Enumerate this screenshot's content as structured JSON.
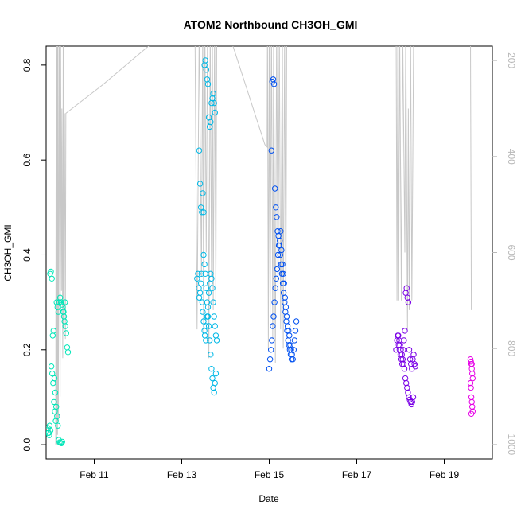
{
  "chart_data": {
    "type": "scatter",
    "title": "ATOM2 Northbound CH3OH_GMI",
    "xlabel": "Date",
    "ylabel": "CH3OH_GMI",
    "xlim": [
      0,
      10.2
    ],
    "ylim": [
      -0.03,
      0.84
    ],
    "x_ticks": [
      {
        "value": 1.1,
        "label": "Feb 11"
      },
      {
        "value": 3.1,
        "label": "Feb 13"
      },
      {
        "value": 5.1,
        "label": "Feb 15"
      },
      {
        "value": 7.1,
        "label": "Feb 17"
      },
      {
        "value": 9.1,
        "label": "Feb 19"
      }
    ],
    "y_ticks": [
      0.0,
      0.2,
      0.4,
      0.6,
      0.8
    ],
    "y_tick_labels": [
      "0.0",
      "0.2",
      "0.4",
      "0.6",
      "0.8"
    ],
    "right_axis": {
      "ylim": [
        1030,
        170
      ],
      "ticks": [
        200,
        400,
        600,
        800,
        1000
      ],
      "tick_labels": [
        "200",
        "400",
        "600",
        "800",
        "1000"
      ],
      "color": "#b8b8b8"
    },
    "pressure_trace": {
      "color": "#c8c8c8",
      "points": [
        [
          0.22,
          1000
        ],
        [
          0.23,
          120
        ],
        [
          0.24,
          1000
        ],
        [
          0.25,
          130
        ],
        [
          0.26,
          980
        ],
        [
          0.27,
          110
        ],
        [
          0.28,
          950
        ],
        [
          0.3,
          120
        ],
        [
          0.32,
          900
        ],
        [
          0.33,
          150
        ],
        [
          0.35,
          680
        ],
        [
          0.36,
          300
        ],
        [
          0.38,
          820
        ],
        [
          0.39,
          120
        ],
        [
          0.4,
          760
        ],
        [
          0.42,
          310
        ],
        [
          0.44,
          780
        ],
        [
          0.45,
          310
        ],
        [
          1.3,
          250
        ],
        [
          2.6,
          150
        ],
        [
          3.4,
          100
        ],
        [
          3.45,
          760
        ],
        [
          3.5,
          120
        ],
        [
          3.55,
          650
        ],
        [
          3.58,
          130
        ],
        [
          3.6,
          770
        ],
        [
          3.63,
          120
        ],
        [
          3.66,
          600
        ],
        [
          3.69,
          110
        ],
        [
          3.72,
          820
        ],
        [
          3.75,
          130
        ],
        [
          3.78,
          650
        ],
        [
          3.8,
          120
        ],
        [
          3.82,
          720
        ],
        [
          3.85,
          130
        ],
        [
          3.88,
          700
        ],
        [
          3.9,
          150
        ],
        [
          3.94,
          120
        ],
        [
          4.2,
          150
        ],
        [
          5.0,
          375
        ],
        [
          5.05,
          380
        ],
        [
          5.06,
          120
        ],
        [
          5.08,
          800
        ],
        [
          5.1,
          130
        ],
        [
          5.12,
          760
        ],
        [
          5.15,
          120
        ],
        [
          5.18,
          780
        ],
        [
          5.2,
          140
        ],
        [
          5.24,
          830
        ],
        [
          5.27,
          120
        ],
        [
          5.3,
          700
        ],
        [
          5.33,
          130
        ],
        [
          5.36,
          760
        ],
        [
          5.4,
          120
        ],
        [
          5.42,
          800
        ],
        [
          5.45,
          150
        ],
        [
          5.48,
          740
        ],
        [
          5.5,
          130
        ],
        [
          8.0,
          120
        ],
        [
          8.02,
          700
        ],
        [
          8.04,
          130
        ],
        [
          8.06,
          700
        ],
        [
          8.08,
          120
        ],
        [
          8.12,
          700
        ],
        [
          8.15,
          140
        ],
        [
          8.2,
          600
        ],
        [
          8.22,
          120
        ],
        [
          8.26,
          760
        ],
        [
          8.28,
          300
        ],
        [
          8.3,
          720
        ],
        [
          8.33,
          130
        ],
        [
          8.36,
          700
        ],
        [
          8.4,
          150
        ],
        [
          9.7,
          150
        ],
        [
          9.72,
          720
        ]
      ]
    },
    "series": [
      {
        "color": "#00e6b8",
        "x": [
          0.02,
          0.04,
          0.06,
          0.08,
          0.1,
          0.12,
          0.14,
          0.16,
          0.18,
          0.2,
          0.22,
          0.24,
          0.26,
          0.28,
          0.3,
          0.32,
          0.34,
          0.36,
          0.38,
          0.4,
          0.42,
          0.44,
          0.46,
          0.48,
          0.5,
          0.05,
          0.07,
          0.09,
          0.11,
          0.13,
          0.15,
          0.17,
          0.19,
          0.21,
          0.23,
          0.25,
          0.27,
          0.29,
          0.31,
          0.33,
          0.35,
          0.37,
          0.39,
          0.41,
          0.43
        ],
        "y": [
          0.03,
          0.035,
          0.025,
          0.04,
          0.03,
          0.165,
          0.15,
          0.13,
          0.09,
          0.07,
          0.05,
          0.3,
          0.29,
          0.28,
          0.3,
          0.31,
          0.3,
          0.295,
          0.29,
          0.28,
          0.26,
          0.25,
          0.235,
          0.205,
          0.195,
          0.025,
          0.02,
          0.36,
          0.365,
          0.35,
          0.23,
          0.24,
          0.14,
          0.11,
          0.08,
          0.06,
          0.04,
          0.01,
          0.005,
          0.004,
          0.003,
          0.006,
          0.28,
          0.27,
          0.3
        ]
      },
      {
        "color": "#00b8e6",
        "x": [
          3.45,
          3.47,
          3.49,
          3.5,
          3.52,
          3.54,
          3.55,
          3.57,
          3.58,
          3.6,
          3.62,
          3.63,
          3.65,
          3.66,
          3.68,
          3.7,
          3.72,
          3.74,
          3.76,
          3.78,
          3.8,
          3.82,
          3.84,
          3.86,
          3.88,
          3.9,
          3.5,
          3.52,
          3.54,
          3.56,
          3.58,
          3.6,
          3.62,
          3.64,
          3.66,
          3.68,
          3.7,
          3.72,
          3.74,
          3.76,
          3.78,
          3.8,
          3.82,
          3.84,
          3.86,
          3.6,
          3.62,
          3.64,
          3.66,
          3.68,
          3.7,
          3.72,
          3.74,
          3.76,
          3.78,
          3.8,
          3.82,
          3.84,
          3.86,
          3.88
        ],
        "y": [
          0.35,
          0.36,
          0.33,
          0.31,
          0.32,
          0.34,
          0.36,
          0.3,
          0.28,
          0.26,
          0.24,
          0.23,
          0.22,
          0.25,
          0.27,
          0.29,
          0.32,
          0.34,
          0.36,
          0.35,
          0.33,
          0.3,
          0.27,
          0.25,
          0.23,
          0.22,
          0.62,
          0.55,
          0.5,
          0.49,
          0.53,
          0.49,
          0.8,
          0.81,
          0.79,
          0.77,
          0.76,
          0.69,
          0.67,
          0.68,
          0.72,
          0.73,
          0.74,
          0.72,
          0.7,
          0.4,
          0.38,
          0.36,
          0.33,
          0.3,
          0.27,
          0.25,
          0.22,
          0.19,
          0.16,
          0.14,
          0.12,
          0.11,
          0.13,
          0.15
        ]
      },
      {
        "color": "#0050f0",
        "x": [
          5.1,
          5.12,
          5.14,
          5.16,
          5.18,
          5.2,
          5.22,
          5.24,
          5.26,
          5.28,
          5.3,
          5.32,
          5.34,
          5.36,
          5.38,
          5.4,
          5.42,
          5.44,
          5.46,
          5.48,
          5.5,
          5.52,
          5.54,
          5.56,
          5.58,
          5.6,
          5.62,
          5.64,
          5.66,
          5.68,
          5.7,
          5.72,
          5.15,
          5.17,
          5.19,
          5.21,
          5.23,
          5.25,
          5.27,
          5.29,
          5.31,
          5.33,
          5.35,
          5.37,
          5.39,
          5.41,
          5.43,
          5.45,
          5.47,
          5.49,
          5.51,
          5.53,
          5.55,
          5.57,
          5.59,
          5.61
        ],
        "y": [
          0.16,
          0.18,
          0.2,
          0.22,
          0.25,
          0.27,
          0.3,
          0.33,
          0.35,
          0.37,
          0.4,
          0.42,
          0.43,
          0.45,
          0.41,
          0.38,
          0.36,
          0.34,
          0.31,
          0.29,
          0.27,
          0.25,
          0.24,
          0.23,
          0.21,
          0.2,
          0.19,
          0.18,
          0.2,
          0.22,
          0.24,
          0.26,
          0.62,
          0.765,
          0.77,
          0.76,
          0.54,
          0.5,
          0.48,
          0.45,
          0.44,
          0.42,
          0.4,
          0.38,
          0.36,
          0.34,
          0.32,
          0.3,
          0.28,
          0.26,
          0.24,
          0.22,
          0.21,
          0.2,
          0.19,
          0.18
        ]
      },
      {
        "color": "#7a00e6",
        "x": [
          8.0,
          8.02,
          8.04,
          8.06,
          8.08,
          8.1,
          8.12,
          8.14,
          8.16,
          8.18,
          8.2,
          8.22,
          8.24,
          8.26,
          8.28,
          8.3,
          8.32,
          8.34,
          8.36,
          8.38,
          8.4,
          8.42,
          8.44,
          8.05,
          8.07,
          8.09,
          8.11,
          8.13,
          8.15,
          8.17,
          8.19,
          8.21,
          8.23,
          8.25,
          8.27,
          8.29,
          8.31,
          8.33,
          8.35,
          8.37,
          8.39
        ],
        "y": [
          0.2,
          0.22,
          0.23,
          0.21,
          0.2,
          0.19,
          0.18,
          0.17,
          0.2,
          0.22,
          0.24,
          0.32,
          0.33,
          0.31,
          0.3,
          0.2,
          0.18,
          0.17,
          0.16,
          0.18,
          0.19,
          0.17,
          0.165,
          0.23,
          0.22,
          0.21,
          0.2,
          0.19,
          0.18,
          0.17,
          0.16,
          0.14,
          0.13,
          0.12,
          0.11,
          0.1,
          0.095,
          0.09,
          0.085,
          0.09,
          0.1
        ]
      },
      {
        "color": "#e600e6",
        "x": [
          9.7,
          9.71,
          9.72,
          9.73,
          9.74,
          9.75,
          9.7,
          9.71,
          9.72,
          9.73,
          9.74,
          9.75,
          9.72,
          9.73
        ],
        "y": [
          0.18,
          0.175,
          0.17,
          0.16,
          0.15,
          0.14,
          0.13,
          0.12,
          0.1,
          0.09,
          0.08,
          0.07,
          0.065,
          0.17
        ]
      }
    ]
  }
}
